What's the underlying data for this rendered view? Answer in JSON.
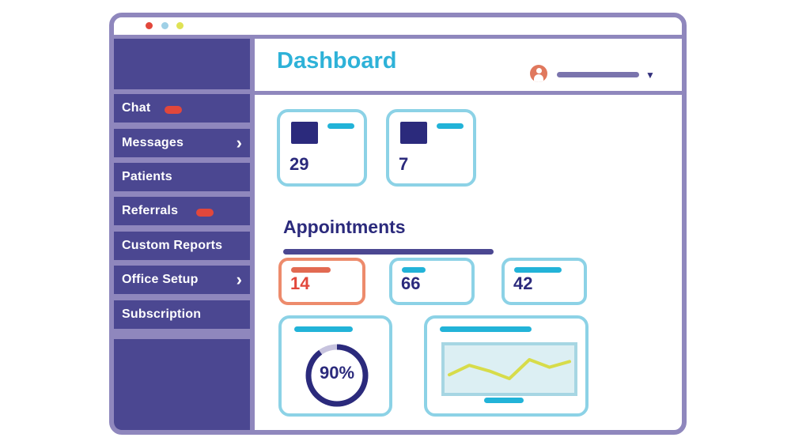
{
  "header": {
    "title": "Dashboard"
  },
  "sidebar": {
    "items": [
      {
        "label": "Chat",
        "badge": true,
        "chevron": false
      },
      {
        "label": "Messages",
        "badge": false,
        "chevron": true
      },
      {
        "label": "Patients",
        "badge": false,
        "chevron": false
      },
      {
        "label": "Referrals",
        "badge": true,
        "chevron": false
      },
      {
        "label": "Custom Reports",
        "badge": false,
        "chevron": false
      },
      {
        "label": "Office Setup",
        "badge": false,
        "chevron": true
      },
      {
        "label": "Subscription",
        "badge": false,
        "chevron": false
      }
    ],
    "chevron_glyph": "›"
  },
  "user_menu": {
    "dropdown_glyph": "▼"
  },
  "summary_cards": [
    {
      "value": "29"
    },
    {
      "value": "7"
    }
  ],
  "appointments": {
    "title": "Appointments",
    "stats": [
      {
        "value": "14",
        "status": "alert"
      },
      {
        "value": "66",
        "status": "normal"
      },
      {
        "value": "42",
        "status": "normal"
      }
    ]
  },
  "donut": {
    "label": "90%",
    "percent": 90
  },
  "trend": {
    "y": [
      0.35,
      0.6,
      0.45,
      0.25,
      0.75,
      0.55,
      0.7
    ]
  },
  "colors": {
    "accent": "#2eb2d8",
    "sidebar": "#4b4791",
    "navy": "#2b2a7c",
    "alert": "#e2473b",
    "line": "#d7dc4a"
  },
  "icons": {
    "avatar": "user-avatar-icon",
    "dropdown": "chevron-down-icon",
    "chevron": "chevron-right-icon"
  }
}
